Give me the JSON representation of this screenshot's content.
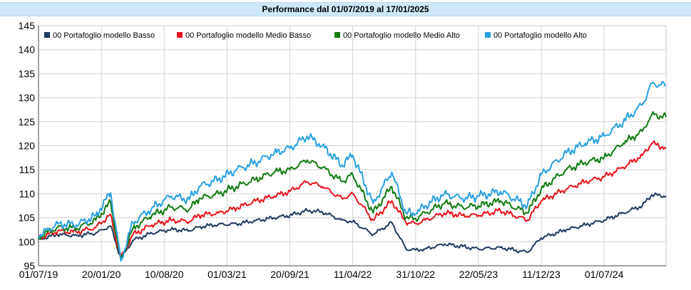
{
  "chart_data": {
    "type": "line",
    "title": "Performance dal 01/07/2019 al 17/01/2025",
    "xlabel": "",
    "ylabel": "",
    "ylim": [
      95,
      145
    ],
    "yticks": [
      95,
      100,
      105,
      110,
      115,
      120,
      125,
      130,
      135,
      140,
      145
    ],
    "xlim": [
      "01/07/19",
      "17/01/25"
    ],
    "xticks": [
      "01/07/19",
      "20/01/20",
      "10/08/20",
      "01/03/21",
      "20/09/21",
      "11/04/22",
      "31/10/22",
      "22/05/23",
      "11/12/23",
      "01/07/24"
    ],
    "grid": true,
    "legend": "top-left",
    "x": [
      "01/07/19",
      "01/09/19",
      "01/11/19",
      "02/01/20",
      "19/02/20",
      "23/03/20",
      "01/05/20",
      "01/07/20",
      "01/09/20",
      "30/10/20",
      "01/12/20",
      "01/02/21",
      "01/04/21",
      "01/06/21",
      "01/08/21",
      "20/09/21",
      "15/11/21",
      "03/01/22",
      "07/03/22",
      "11/04/22",
      "16/06/22",
      "15/08/22",
      "30/09/22",
      "31/10/22",
      "01/12/22",
      "01/02/23",
      "01/04/23",
      "22/05/23",
      "01/08/23",
      "27/10/23",
      "11/12/23",
      "01/03/24",
      "01/05/24",
      "01/07/24",
      "01/09/24",
      "01/11/24",
      "02/12/24",
      "17/01/25"
    ],
    "series": [
      {
        "name": "00 Portafoglio modello Basso",
        "color": "#1f3a5f",
        "values": [
          100.5,
          101.5,
          101.3,
          101.8,
          103.3,
          96.5,
          100.3,
          101.8,
          102.6,
          102.3,
          103.1,
          103.6,
          103.7,
          104.4,
          105.0,
          105.5,
          106.5,
          106.2,
          104.5,
          104.2,
          101.5,
          104.0,
          98.5,
          98.3,
          98.5,
          99.5,
          99.0,
          98.5,
          98.8,
          97.8,
          100.8,
          102.5,
          103.5,
          104.5,
          106.0,
          107.5,
          109.8,
          109.5
        ]
      },
      {
        "name": "00 Portafoglio modello Medio Basso",
        "color": "#e8141c",
        "values": [
          100.8,
          102.2,
          102.0,
          103.0,
          105.7,
          96.5,
          101.5,
          103.5,
          104.5,
          104.2,
          105.5,
          106.0,
          107.0,
          108.5,
          109.5,
          110.5,
          112.5,
          111.5,
          109.0,
          110.0,
          104.5,
          108.5,
          104.0,
          103.8,
          104.5,
          106.0,
          105.5,
          105.5,
          106.5,
          104.5,
          108.5,
          111.0,
          112.5,
          113.5,
          115.5,
          118.0,
          120.5,
          119.5
        ]
      },
      {
        "name": "00 Portafoglio modello Medio Alto",
        "color": "#127a12",
        "values": [
          101.0,
          103.0,
          102.8,
          104.5,
          108.2,
          96.2,
          102.8,
          105.5,
          107.2,
          106.8,
          109.0,
          110.0,
          111.5,
          113.0,
          114.5,
          115.0,
          117.0,
          115.5,
          112.5,
          114.0,
          106.0,
          111.5,
          105.0,
          104.8,
          106.0,
          108.0,
          107.2,
          107.5,
          108.5,
          106.0,
          111.0,
          115.0,
          116.5,
          117.5,
          120.5,
          123.0,
          126.5,
          126.0
        ]
      },
      {
        "name": "00 Portafoglio modello Alto",
        "color": "#2aa0e0",
        "values": [
          101.2,
          103.8,
          103.5,
          105.5,
          110.2,
          96.0,
          104.0,
          107.0,
          109.5,
          108.8,
          111.5,
          113.0,
          115.0,
          116.5,
          118.5,
          119.5,
          122.0,
          120.0,
          116.0,
          118.0,
          108.0,
          114.5,
          106.0,
          105.8,
          107.5,
          110.0,
          109.0,
          109.5,
          110.5,
          107.5,
          114.0,
          118.5,
          120.5,
          122.0,
          125.0,
          128.5,
          133.0,
          132.5
        ]
      }
    ]
  }
}
